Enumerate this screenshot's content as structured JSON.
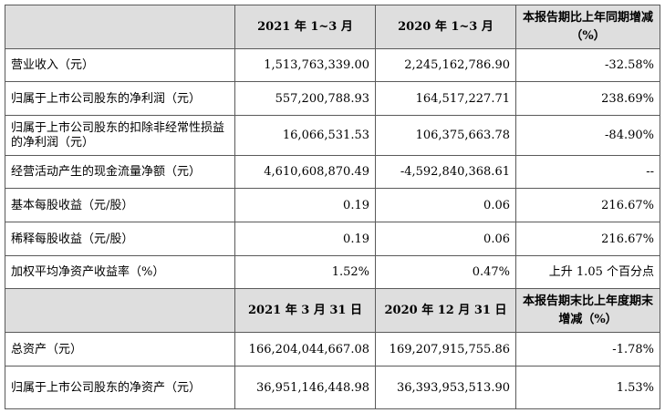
{
  "table": {
    "header1": {
      "col1": "2021 年 1~3 月",
      "col2": "2020 年 1~3 月",
      "col3": "本报告期比上年同期增减（%）"
    },
    "rows1": [
      {
        "label": "营业收入（元）",
        "v1": "1,513,763,339.00",
        "v2": "2,245,162,786.90",
        "v3": "-32.58%"
      },
      {
        "label": "归属于上市公司股东的净利润（元）",
        "v1": "557,200,788.93",
        "v2": "164,517,227.71",
        "v3": "238.69%"
      },
      {
        "label": "归属于上市公司股东的扣除非经常性损益的净利润（元）",
        "v1": "16,066,531.53",
        "v2": "106,375,663.78",
        "v3": "-84.90%"
      },
      {
        "label": "经营活动产生的现金流量净额（元）",
        "v1": "4,610,608,870.49",
        "v2": "-4,592,840,368.61",
        "v3": "--"
      },
      {
        "label": "基本每股收益（元/股）",
        "v1": "0.19",
        "v2": "0.06",
        "v3": "216.67%"
      },
      {
        "label": "稀释每股收益（元/股）",
        "v1": "0.19",
        "v2": "0.06",
        "v3": "216.67%"
      },
      {
        "label": "加权平均净资产收益率（%）",
        "v1": "1.52%",
        "v2": "0.47%",
        "v3": "上升 1.05 个百分点"
      }
    ],
    "header2": {
      "col1": "2021 年 3 月 31 日",
      "col2": "2020 年 12 月 31 日",
      "col3": "本报告期末比上年度期末增减（%）"
    },
    "rows2": [
      {
        "label": "总资产（元）",
        "v1": "166,204,044,667.08",
        "v2": "169,207,915,755.86",
        "v3": "-1.78%"
      },
      {
        "label": "归属于上市公司股东的净资产（元）",
        "v1": "36,951,146,448.98",
        "v2": "36,393,953,513.90",
        "v3": "1.53%"
      }
    ]
  }
}
